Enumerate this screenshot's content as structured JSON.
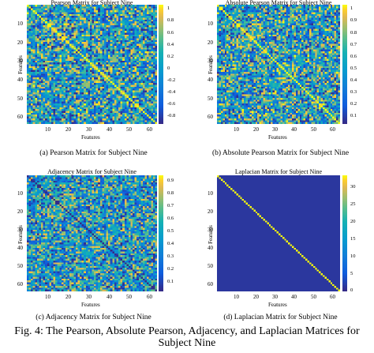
{
  "figure": {
    "caption": "Fig. 4: The Pearson, Absolute Pearson, Adjacency, and Laplacian Matrices for Subject Nine"
  },
  "panels": [
    {
      "id": "a",
      "subcaption": "(a) Pearson Matrix for Subject Nine",
      "title": "Pearson Matrix for Subject Nine",
      "xlabel": "Features",
      "ylabel": "Features",
      "colorbar_ticks": [
        "1",
        "0.8",
        "0.6",
        "0.4",
        "0.2",
        "0",
        "-0.2",
        "-0.4",
        "-0.6",
        "-0.8"
      ]
    },
    {
      "id": "b",
      "subcaption": "(b) Absolute Pearson Matrix for Subject Nine",
      "title": "Absolute Pearson Matrix for Subject Nine",
      "xlabel": "Features",
      "ylabel": "Features",
      "colorbar_ticks": [
        "1",
        "0.9",
        "0.8",
        "0.7",
        "0.6",
        "0.5",
        "0.4",
        "0.3",
        "0.2",
        "0.1"
      ]
    },
    {
      "id": "c",
      "subcaption": "(c) Adjacency Matrix for Subject Nine",
      "title": "Adjacency Matrix for Subject Nine",
      "xlabel": "Features",
      "ylabel": "Features",
      "colorbar_ticks": [
        "0.9",
        "0.8",
        "0.7",
        "0.6",
        "0.5",
        "0.4",
        "0.3",
        "0.2",
        "0.1"
      ]
    },
    {
      "id": "d",
      "subcaption": "(d) Laplacian Matrix for Subject Nine",
      "title": "Laplacian Matrix for Subject Nine",
      "xlabel": "Features",
      "ylabel": "Features",
      "colorbar_ticks": [
        "30",
        "25",
        "20",
        "15",
        "10",
        "5",
        "0"
      ]
    }
  ],
  "chart_data": [
    {
      "type": "heatmap",
      "title": "Pearson Matrix for Subject Nine",
      "xlabel": "Features",
      "ylabel": "Features",
      "x_ticks": [
        "10",
        "20",
        "30",
        "40",
        "50",
        "60"
      ],
      "y_ticks": [
        "10",
        "20",
        "30",
        "40",
        "50",
        "60"
      ],
      "size": 64,
      "color_range": [
        -1,
        1
      ],
      "diagonal_value": 1,
      "colormap": "parula"
    },
    {
      "type": "heatmap",
      "title": "Absolute Pearson Matrix for Subject Nine",
      "xlabel": "Features",
      "ylabel": "Features",
      "x_ticks": [
        "10",
        "20",
        "30",
        "40",
        "50",
        "60"
      ],
      "y_ticks": [
        "10",
        "20",
        "30",
        "40",
        "50",
        "60"
      ],
      "size": 64,
      "color_range": [
        0,
        1
      ],
      "diagonal_value": 1,
      "colormap": "parula"
    },
    {
      "type": "heatmap",
      "title": "Adjacency Matrix for Subject Nine",
      "xlabel": "Features",
      "ylabel": "Features",
      "x_ticks": [
        "10",
        "20",
        "30",
        "40",
        "50",
        "60"
      ],
      "y_ticks": [
        "10",
        "20",
        "30",
        "40",
        "50",
        "60"
      ],
      "size": 64,
      "color_range": [
        0,
        1
      ],
      "diagonal_value": 0,
      "colormap": "parula"
    },
    {
      "type": "heatmap",
      "title": "Laplacian Matrix for Subject Nine",
      "xlabel": "Features",
      "ylabel": "Features",
      "x_ticks": [
        "10",
        "20",
        "30",
        "40",
        "50",
        "60"
      ],
      "y_ticks": [
        "10",
        "20",
        "30",
        "40",
        "50",
        "60"
      ],
      "size": 64,
      "color_range": [
        0,
        33
      ],
      "diagonal_value": 33,
      "off_diagonal_value": 0,
      "colormap": "parula"
    }
  ]
}
